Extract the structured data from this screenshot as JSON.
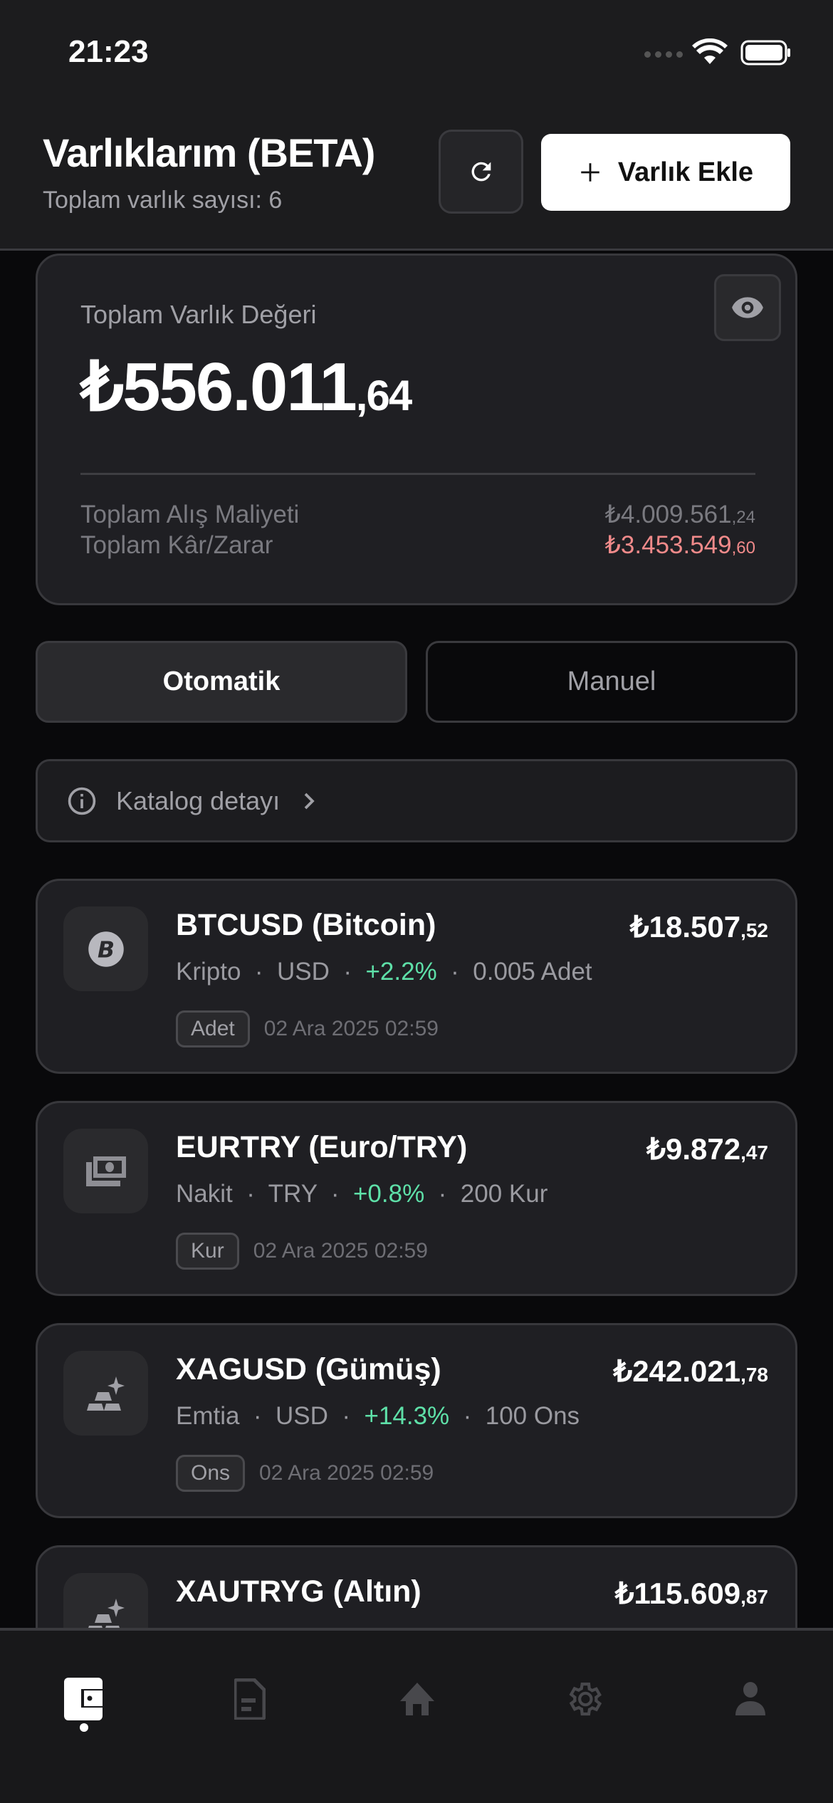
{
  "status_bar": {
    "time": "21:23"
  },
  "header": {
    "title": "Varlıklarım (BETA)",
    "subtitle": "Toplam varlık sayısı: 6",
    "add_label": "Varlık Ekle"
  },
  "summary": {
    "label": "Toplam Varlık Değeri",
    "value_main": "₺556.011",
    "value_dec": ",64",
    "cost_label": "Toplam Alış Maliyeti",
    "cost_main": "₺4.009.561",
    "cost_dec": ",24",
    "pl_label": "Toplam Kâr/Zarar",
    "pl_main": "₺3.453.549",
    "pl_dec": ",60"
  },
  "tabs": {
    "auto": "Otomatik",
    "manual": "Manuel",
    "active": "Otomatik"
  },
  "katalog": {
    "label": "Katalog detayı"
  },
  "assets": [
    {
      "name": "BTCUSD (Bitcoin)",
      "value_main": "₺18.507",
      "value_dec": ",52",
      "category": "Kripto",
      "currency": "USD",
      "change": "+2.2%",
      "qty": "0.005 Adet",
      "unit": "Adet",
      "date": "02 Ara 2025 02:59",
      "icon": "bitcoin-icon"
    },
    {
      "name": "EURTRY (Euro/TRY)",
      "value_main": "₺9.872",
      "value_dec": ",47",
      "category": "Nakit",
      "currency": "TRY",
      "change": "+0.8%",
      "qty": "200 Kur",
      "unit": "Kur",
      "date": "02 Ara 2025 02:59",
      "icon": "cash-icon"
    },
    {
      "name": "XAGUSD (Gümüş)",
      "value_main": "₺242.021",
      "value_dec": ",78",
      "category": "Emtia",
      "currency": "USD",
      "change": "+14.3%",
      "qty": "100 Ons",
      "unit": "Ons",
      "date": "02 Ara 2025 02:59",
      "icon": "gold-bars-icon"
    },
    {
      "name": "XAUTRYG (Altın)",
      "value_main": "₺115.609",
      "value_dec": ",87",
      "icon": "gold-bars-icon"
    }
  ],
  "colors": {
    "positive": "#5ee0a8",
    "negative": "#f08a8a",
    "background": "#09090b",
    "card": "#1f1f23"
  },
  "tabbar": {
    "items": [
      "wallet-icon",
      "document-icon",
      "home-icon",
      "settings-icon",
      "profile-icon"
    ],
    "active": "wallet-icon"
  }
}
